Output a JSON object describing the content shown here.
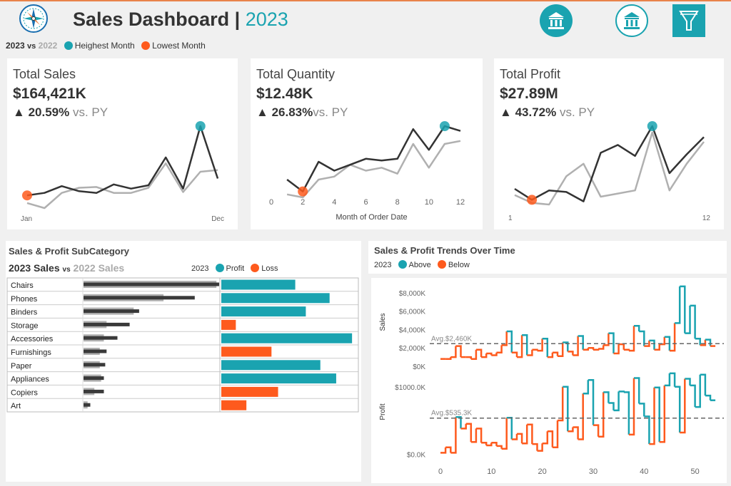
{
  "header": {
    "title": "Sales Dashboard",
    "separator": "|",
    "year": "2023",
    "icons": [
      "bank-icon",
      "bank-icon",
      "filter-icon"
    ]
  },
  "legend_top": {
    "current": "2023",
    "vs": "vs",
    "previous": "2022",
    "highest": "Heighest Month",
    "lowest": "Lowest Month"
  },
  "colors": {
    "teal": "#1aa3b0",
    "orange": "#fe5a1d",
    "dark_line": "#333333",
    "light_line": "#b0b0b0"
  },
  "kpis": [
    {
      "title": "Total Sales",
      "value": "$164,421K",
      "arrow": "▲",
      "delta": "20.59%",
      "vs": "vs. PY"
    },
    {
      "title": "Total Quantity",
      "value": "$12.48K",
      "arrow": "▲",
      "delta": "26.83%",
      "vs": "vs. PY"
    },
    {
      "title": "Total Profit",
      "value": "$27.89M",
      "arrow": "▲",
      "delta": "43.72%",
      "vs": "vs. PY"
    }
  ],
  "subcat": {
    "title": "Sales & Profit SubCategory",
    "legend_year": "2023 Sales",
    "legend_vs": "vs",
    "legend_prev": "2022 Sales",
    "profit_year": "2023",
    "profit_label": "Profit",
    "loss_label": "Loss"
  },
  "trends": {
    "title": "Sales & Profit Trends Over Time",
    "legend_year": "2023",
    "above_label": "Above",
    "below_label": "Below"
  },
  "chart_data": [
    {
      "type": "line",
      "title": "Total Sales",
      "x": [
        1,
        2,
        3,
        4,
        5,
        6,
        7,
        8,
        9,
        10,
        11,
        12
      ],
      "x_tick_labels": [
        "Jan",
        "Dec"
      ],
      "series": [
        {
          "name": "2023",
          "values": [
            2.0,
            2.3,
            3.1,
            2.5,
            2.3,
            3.3,
            2.8,
            3.2,
            6.5,
            2.8,
            10.2,
            4.0
          ]
        },
        {
          "name": "2022",
          "values": [
            1.1,
            0.5,
            2.3,
            2.9,
            3.0,
            2.3,
            2.3,
            2.9,
            5.8,
            2.4,
            4.8,
            5.0
          ]
        }
      ],
      "highest_month": 11,
      "lowest_month": 1
    },
    {
      "type": "line",
      "title": "Total Quantity",
      "xlabel": "Month of Order Date",
      "x": [
        1,
        2,
        3,
        4,
        5,
        6,
        7,
        8,
        9,
        10,
        11,
        12
      ],
      "x_ticks": [
        0,
        2,
        4,
        6,
        8,
        10,
        12
      ],
      "series": [
        {
          "name": "2023",
          "values": [
            0.9,
            0.7,
            1.2,
            1.05,
            1.15,
            1.25,
            1.22,
            1.25,
            1.75,
            1.4,
            1.8,
            1.72
          ]
        },
        {
          "name": "2022",
          "values": [
            0.65,
            0.6,
            0.9,
            0.95,
            1.15,
            1.05,
            1.1,
            1.0,
            1.5,
            1.1,
            1.5,
            1.55
          ]
        }
      ],
      "highest_month": 11,
      "lowest_month": 2
    },
    {
      "type": "line",
      "title": "Total Profit",
      "x": [
        1,
        2,
        3,
        4,
        5,
        6,
        7,
        8,
        9,
        10,
        11,
        12
      ],
      "x_tick_labels": [
        "1",
        "12"
      ],
      "series": [
        {
          "name": "2023",
          "values": [
            1.0,
            0.3,
            0.9,
            0.8,
            0.2,
            3.3,
            3.8,
            3.1,
            5.0,
            2.0,
            3.2,
            4.3
          ]
        },
        {
          "name": "2022",
          "values": [
            0.6,
            0.1,
            0.0,
            1.8,
            2.6,
            0.5,
            0.7,
            0.9,
            4.6,
            0.9,
            2.6,
            4.0
          ]
        }
      ],
      "highest_month": 9,
      "lowest_month": 2
    },
    {
      "type": "bar",
      "title": "Sales & Profit SubCategory",
      "categories": [
        "Chairs",
        "Phones",
        "Binders",
        "Storage",
        "Accessories",
        "Furnishings",
        "Paper",
        "Appliances",
        "Copiers",
        "Art"
      ],
      "series": [
        {
          "name": "2023 Sales",
          "values": [
            1.0,
            0.82,
            0.41,
            0.34,
            0.25,
            0.17,
            0.16,
            0.15,
            0.15,
            0.05
          ]
        },
        {
          "name": "2022 Sales",
          "values": [
            0.98,
            0.59,
            0.37,
            0.17,
            0.15,
            0.12,
            0.12,
            0.13,
            0.08,
            0.03
          ]
        },
        {
          "name": "Profit",
          "values": [
            0.56,
            0.82,
            0.64,
            -0.11,
            0.99,
            -0.38,
            0.75,
            0.87,
            -0.43,
            -0.19
          ]
        }
      ]
    },
    {
      "type": "step",
      "title": "Sales & Profit Trends Over Time",
      "x_ticks": [
        0,
        10,
        20,
        30,
        40,
        50
      ],
      "sales": {
        "ylabel": "Sales",
        "y_ticks": [
          "$0K",
          "$2,000K",
          "$4,000K",
          "$6,000K",
          "$8,000K"
        ],
        "avg_label": "Avg.$2,460K",
        "avg": 2460,
        "values": [
          800,
          800,
          1000,
          2200,
          1000,
          1000,
          800,
          1800,
          1000,
          1400,
          1200,
          1500,
          2300,
          3800,
          1500,
          1000,
          3400,
          1200,
          1800,
          1700,
          3000,
          1000,
          1500,
          1100,
          2600,
          1600,
          1200,
          3300,
          1800,
          2000,
          1800,
          1900,
          2300,
          3600,
          1400,
          2400,
          1800,
          1700,
          4400,
          3800,
          2200,
          2800,
          1800,
          2400,
          3200,
          1700,
          4700,
          8700,
          3600,
          6600,
          3000,
          2300,
          2900,
          2200
        ]
      },
      "profit": {
        "ylabel": "Profit",
        "y_ticks": [
          "$0.0K",
          "$1000.0K"
        ],
        "avg_label": "Avg.$535.3K",
        "avg": 535,
        "values": [
          20,
          100,
          20,
          550,
          380,
          450,
          180,
          380,
          170,
          130,
          170,
          120,
          80,
          540,
          220,
          300,
          160,
          440,
          150,
          50,
          160,
          340,
          100,
          500,
          1000,
          340,
          400,
          220,
          900,
          1100,
          430,
          260,
          920,
          760,
          650,
          930,
          920,
          290,
          1130,
          750,
          560,
          150,
          990,
          180,
          1020,
          1200,
          1000,
          320,
          1120,
          1020,
          700,
          1180,
          870,
          800
        ]
      }
    }
  ]
}
